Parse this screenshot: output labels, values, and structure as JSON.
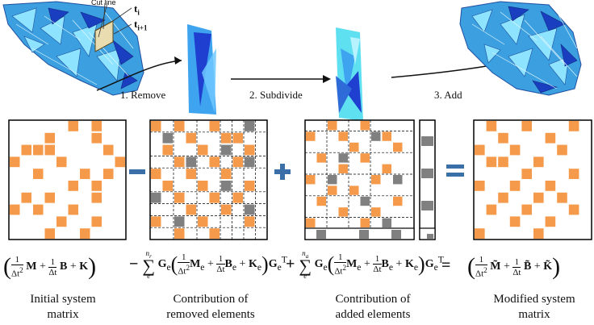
{
  "top_row": {
    "cut_line_label": "Cut line",
    "t_i": "t",
    "t_i_sub": "i",
    "t_i1": "t",
    "t_i1_sub": "i+1",
    "steps": [
      {
        "label": "1. Remove"
      },
      {
        "label": "2. Subdivide"
      },
      {
        "label": "3. Add"
      }
    ]
  },
  "matrices": {
    "initial": {
      "cells": [
        [
          0,
          5
        ],
        [
          0,
          7
        ],
        [
          1,
          3
        ],
        [
          1,
          7
        ],
        [
          2,
          1
        ],
        [
          2,
          2
        ],
        [
          2,
          3
        ],
        [
          2,
          8
        ],
        [
          3,
          0
        ],
        [
          3,
          4
        ],
        [
          3,
          9
        ],
        [
          4,
          2
        ],
        [
          4,
          6
        ],
        [
          4,
          8
        ],
        [
          5,
          5
        ],
        [
          5,
          7
        ],
        [
          6,
          1
        ],
        [
          6,
          3
        ],
        [
          6,
          7
        ],
        [
          7,
          0
        ],
        [
          7,
          2
        ],
        [
          7,
          5
        ],
        [
          8,
          4
        ],
        [
          8,
          7
        ],
        [
          9,
          3
        ],
        [
          9,
          6
        ]
      ]
    },
    "removed": {
      "cells": [
        [
          0,
          0
        ],
        [
          0,
          2
        ],
        [
          0,
          5
        ],
        [
          1,
          3
        ],
        [
          1,
          6
        ],
        [
          1,
          7
        ],
        [
          2,
          1
        ],
        [
          2,
          4
        ],
        [
          2,
          8
        ],
        [
          3,
          2
        ],
        [
          3,
          5
        ],
        [
          3,
          7
        ],
        [
          4,
          0
        ],
        [
          4,
          3
        ],
        [
          4,
          6
        ],
        [
          5,
          1
        ],
        [
          5,
          4
        ],
        [
          5,
          8
        ],
        [
          6,
          2
        ],
        [
          6,
          5
        ],
        [
          6,
          7
        ],
        [
          7,
          3
        ],
        [
          7,
          6
        ],
        [
          8,
          0
        ],
        [
          8,
          4
        ],
        [
          8,
          8
        ],
        [
          9,
          2
        ],
        [
          9,
          5
        ]
      ],
      "gray": [
        [
          0,
          8
        ],
        [
          1,
          1
        ],
        [
          2,
          6
        ],
        [
          3,
          3
        ],
        [
          3,
          8
        ],
        [
          5,
          6
        ],
        [
          6,
          0
        ],
        [
          7,
          8
        ],
        [
          8,
          2
        ]
      ]
    },
    "added": {
      "cells": [
        [
          0,
          2
        ],
        [
          0,
          5
        ],
        [
          1,
          0
        ],
        [
          1,
          3
        ],
        [
          1,
          7
        ],
        [
          2,
          4
        ],
        [
          2,
          8
        ],
        [
          3,
          1
        ],
        [
          3,
          5
        ],
        [
          4,
          3
        ],
        [
          4,
          7
        ],
        [
          5,
          0
        ],
        [
          5,
          6
        ],
        [
          6,
          2
        ],
        [
          6,
          4
        ],
        [
          7,
          1
        ],
        [
          7,
          8
        ],
        [
          8,
          3
        ],
        [
          8,
          6
        ],
        [
          9,
          0
        ],
        [
          9,
          5
        ]
      ],
      "gray": [
        [
          1,
          6
        ],
        [
          3,
          3
        ],
        [
          5,
          2
        ],
        [
          5,
          8
        ],
        [
          7,
          5
        ],
        [
          9,
          7
        ]
      ]
    },
    "modified": {
      "cells": [
        [
          0,
          1
        ],
        [
          0,
          4
        ],
        [
          0,
          8
        ],
        [
          1,
          2
        ],
        [
          1,
          6
        ],
        [
          2,
          0
        ],
        [
          2,
          3
        ],
        [
          2,
          7
        ],
        [
          3,
          1
        ],
        [
          3,
          2
        ],
        [
          3,
          5
        ],
        [
          4,
          4
        ],
        [
          4,
          8
        ],
        [
          5,
          0
        ],
        [
          5,
          3
        ],
        [
          5,
          6
        ],
        [
          6,
          2
        ],
        [
          6,
          5
        ],
        [
          6,
          7
        ],
        [
          7,
          1
        ],
        [
          7,
          4
        ],
        [
          7,
          8
        ],
        [
          8,
          3
        ],
        [
          8,
          6
        ],
        [
          9,
          0
        ],
        [
          9,
          5
        ]
      ]
    }
  },
  "operators": {
    "minus": "−",
    "plus": "+",
    "equals": "="
  },
  "equations": {
    "initial": "(1/Δt² M + 1/Δt B + K)",
    "removed": "− Σ Gₑ(1/Δt² Mₑ + 1/Δt Bₑ + Kₑ)Gₑᵀ",
    "removed_sum_upper": "n_r",
    "removed_sum_lower": "e",
    "added": "Σ Gₑ(1/Δt² Mₑ + 1/Δt Bₑ + Kₑ)Gₑᵀ",
    "added_sum_upper": "n_a",
    "added_sum_lower": "e",
    "modified": "(1/Δt² M̃ + 1/Δt B̃ + K̃)"
  },
  "captions": {
    "initial": [
      "Initial  system",
      "matrix"
    ],
    "removed": [
      "Contribution of",
      "removed elements"
    ],
    "added": [
      "Contribution of",
      "added elements"
    ],
    "modified": [
      "Modified system",
      "matrix"
    ]
  },
  "colors": {
    "orange": "#f59a4a",
    "gray": "#808080",
    "blue_op": "#3a6fa8",
    "blue_dark": "#1f3fd0",
    "blue_light": "#3fa4f0",
    "cyan": "#5fe0f0"
  }
}
